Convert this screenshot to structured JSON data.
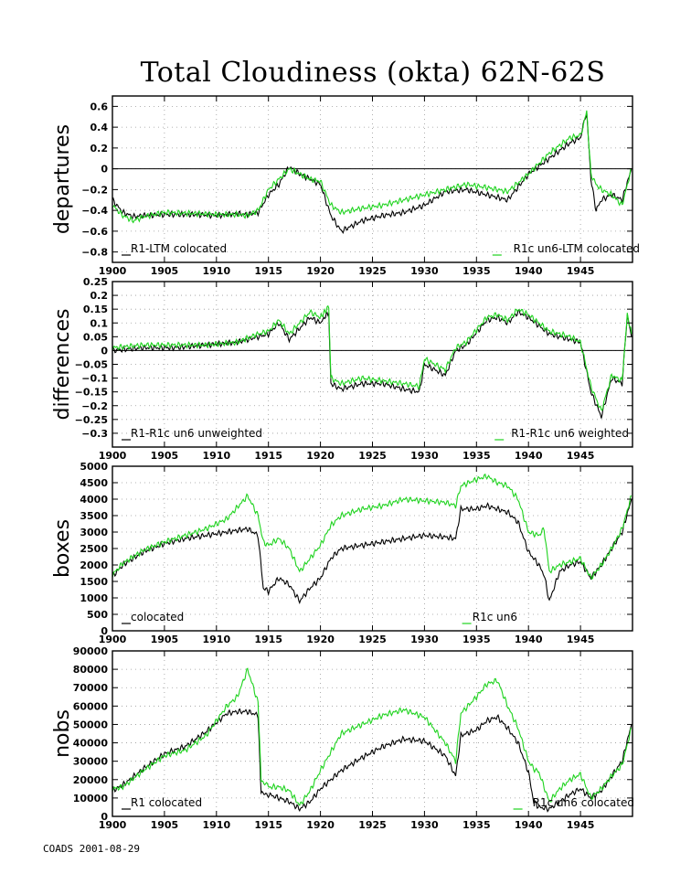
{
  "title": "Total Cloudiness (okta) 62N-62S",
  "footer": "COADS 2001-08-29",
  "colors": {
    "series_black": "#000000",
    "series_green": "#1ed31e",
    "zero_line": "#000000"
  },
  "x_axis": {
    "range": [
      1900,
      1950
    ],
    "ticks": [
      1900,
      1905,
      1910,
      1915,
      1920,
      1925,
      1930,
      1935,
      1940,
      1945
    ],
    "tick_labels": [
      "1900",
      "1905",
      "1910",
      "1915",
      "1920",
      "1925",
      "1930",
      "1935",
      "1940",
      "1945"
    ]
  },
  "chart_data": [
    {
      "type": "line",
      "ylabel": "departures",
      "ylim": [
        -0.9,
        0.7
      ],
      "yticks": [
        -0.8,
        -0.6,
        -0.4,
        -0.2,
        0,
        0.2,
        0.4,
        0.6
      ],
      "ytick_labels": [
        "−0.8",
        "−0.6",
        "−0.4",
        "−0.2",
        "0",
        "0.2",
        "0.4",
        "0.6"
      ],
      "zero_line": true,
      "grid": "dotted",
      "legend": "bottom",
      "series": [
        {
          "name": "R1-LTM colocated",
          "color": "#000000",
          "x": [
            1900,
            1901,
            1902,
            1903,
            1905,
            1908,
            1910,
            1912,
            1913,
            1914,
            1915,
            1916,
            1917,
            1918,
            1919,
            1920,
            1921,
            1922,
            1924,
            1926,
            1928,
            1930,
            1932,
            1934,
            1936,
            1938,
            1940,
            1942,
            1944,
            1945,
            1945.6,
            1946,
            1946.5,
            1947,
            1948,
            1949,
            1949.9
          ],
          "y": [
            -0.3,
            -0.42,
            -0.46,
            -0.45,
            -0.44,
            -0.44,
            -0.45,
            -0.43,
            -0.44,
            -0.42,
            -0.25,
            -0.15,
            0.02,
            -0.05,
            -0.1,
            -0.15,
            -0.45,
            -0.6,
            -0.5,
            -0.45,
            -0.42,
            -0.35,
            -0.22,
            -0.2,
            -0.25,
            -0.3,
            -0.05,
            0.1,
            0.25,
            0.3,
            0.55,
            -0.1,
            -0.4,
            -0.3,
            -0.25,
            -0.3,
            0.0
          ]
        },
        {
          "name": "R1c un6-LTM colocated",
          "color": "#1ed31e",
          "x": [
            1900,
            1901,
            1902,
            1903,
            1905,
            1908,
            1910,
            1912,
            1913,
            1914,
            1915,
            1916,
            1917,
            1918,
            1919,
            1920,
            1921,
            1922,
            1924,
            1926,
            1928,
            1930,
            1932,
            1934,
            1936,
            1938,
            1940,
            1942,
            1944,
            1945,
            1945.6,
            1946,
            1946.5,
            1947,
            1948,
            1949,
            1949.9
          ],
          "y": [
            -0.35,
            -0.45,
            -0.5,
            -0.46,
            -0.42,
            -0.43,
            -0.44,
            -0.44,
            -0.45,
            -0.4,
            -0.2,
            -0.1,
            0.0,
            -0.05,
            -0.1,
            -0.12,
            -0.35,
            -0.42,
            -0.38,
            -0.35,
            -0.3,
            -0.25,
            -0.2,
            -0.15,
            -0.18,
            -0.22,
            -0.05,
            0.15,
            0.3,
            0.32,
            0.55,
            -0.05,
            -0.15,
            -0.2,
            -0.25,
            -0.35,
            0.0
          ]
        }
      ],
      "legend_entries": [
        "R1-LTM colocated",
        "R1c un6-LTM colocated"
      ]
    },
    {
      "type": "line",
      "ylabel": "differences",
      "ylim": [
        -0.35,
        0.25
      ],
      "yticks": [
        -0.3,
        -0.25,
        -0.2,
        -0.15,
        -0.1,
        -0.05,
        0,
        0.05,
        0.1,
        0.15,
        0.2,
        0.25
      ],
      "ytick_labels": [
        "−0.3",
        "−0.25",
        "−0.2",
        "−0.15",
        "−0.1",
        "−0.05",
        "0",
        "0.05",
        "0.1",
        "0.15",
        "0.2",
        "0.25"
      ],
      "zero_line": true,
      "grid": "dotted",
      "legend": "bottom",
      "series": [
        {
          "name": "R1-R1c un6 unweighted",
          "color": "#000000",
          "x": [
            1900,
            1903,
            1906,
            1909,
            1912,
            1914,
            1915,
            1916,
            1917,
            1918,
            1919,
            1920,
            1920.8,
            1921,
            1922,
            1924,
            1926,
            1928,
            1929.5,
            1930,
            1931,
            1932,
            1933,
            1934,
            1936,
            1937,
            1938,
            1939,
            1940,
            1942,
            1944,
            1945,
            1946,
            1947,
            1948,
            1949,
            1949.5,
            1949.9
          ],
          "y": [
            0.0,
            0.01,
            0.01,
            0.02,
            0.03,
            0.05,
            0.06,
            0.1,
            0.04,
            0.08,
            0.12,
            0.1,
            0.14,
            -0.12,
            -0.14,
            -0.12,
            -0.12,
            -0.14,
            -0.15,
            -0.05,
            -0.07,
            -0.09,
            0.0,
            0.02,
            0.11,
            0.12,
            0.1,
            0.14,
            0.12,
            0.06,
            0.04,
            0.03,
            -0.15,
            -0.24,
            -0.1,
            -0.12,
            0.13,
            0.05
          ]
        },
        {
          "name": "R1-R1c un6 weighted",
          "color": "#1ed31e",
          "x": [
            1900,
            1903,
            1906,
            1909,
            1912,
            1914,
            1915,
            1916,
            1917,
            1918,
            1919,
            1920,
            1920.8,
            1921,
            1922,
            1924,
            1926,
            1928,
            1929.5,
            1930,
            1931,
            1932,
            1933,
            1934,
            1936,
            1937,
            1938,
            1939,
            1940,
            1942,
            1944,
            1945,
            1946,
            1947,
            1948,
            1949,
            1949.5,
            1949.9
          ],
          "y": [
            0.01,
            0.02,
            0.02,
            0.02,
            0.03,
            0.06,
            0.07,
            0.11,
            0.06,
            0.1,
            0.14,
            0.12,
            0.16,
            -0.1,
            -0.12,
            -0.1,
            -0.11,
            -0.12,
            -0.13,
            -0.03,
            -0.05,
            -0.07,
            0.01,
            0.03,
            0.12,
            0.13,
            0.11,
            0.15,
            0.13,
            0.07,
            0.05,
            0.03,
            -0.13,
            -0.22,
            -0.09,
            -0.11,
            0.13,
            0.06
          ]
        }
      ],
      "legend_entries": [
        "R1-R1c un6 unweighted",
        "R1-R1c un6 weighted"
      ]
    },
    {
      "type": "line",
      "ylabel": "boxes",
      "ylim": [
        0,
        5000
      ],
      "yticks": [
        0,
        500,
        1000,
        1500,
        2000,
        2500,
        3000,
        3500,
        4000,
        4500,
        5000
      ],
      "ytick_labels": [
        "0",
        "500",
        "1000",
        "1500",
        "2000",
        "2500",
        "3000",
        "3500",
        "4000",
        "4500",
        "5000"
      ],
      "zero_line": false,
      "grid": "dotted",
      "legend": "bottom",
      "series": [
        {
          "name": "colocated",
          "color": "#000000",
          "x": [
            1900,
            1901,
            1903,
            1905,
            1907,
            1909,
            1911,
            1913,
            1914,
            1914.5,
            1915,
            1916,
            1917,
            1918,
            1919,
            1920,
            1921,
            1922,
            1924,
            1926,
            1928,
            1930,
            1932,
            1933,
            1933.5,
            1935,
            1936,
            1937,
            1938,
            1939,
            1940,
            1941,
            1941.5,
            1942,
            1943,
            1944,
            1945,
            1946,
            1947,
            1948,
            1949,
            1949.9
          ],
          "y": [
            1650,
            2000,
            2400,
            2650,
            2800,
            2900,
            3000,
            3100,
            2900,
            1300,
            1200,
            1600,
            1400,
            900,
            1300,
            1600,
            2200,
            2500,
            2600,
            2700,
            2800,
            2900,
            2850,
            2800,
            3700,
            3700,
            3800,
            3700,
            3600,
            3300,
            2400,
            2000,
            1700,
            900,
            1800,
            2000,
            2100,
            1600,
            2000,
            2500,
            3000,
            4000
          ]
        },
        {
          "name": "R1c un6",
          "color": "#1ed31e",
          "x": [
            1900,
            1901,
            1903,
            1905,
            1907,
            1909,
            1911,
            1913,
            1914,
            1914.5,
            1915,
            1916,
            1917,
            1918,
            1919,
            1920,
            1921,
            1922,
            1924,
            1926,
            1928,
            1930,
            1932,
            1933,
            1933.5,
            1935,
            1936,
            1937,
            1938,
            1939,
            1940,
            1941,
            1941.5,
            1942,
            1943,
            1944,
            1945,
            1946,
            1947,
            1948,
            1949,
            1949.9
          ],
          "y": [
            1700,
            2050,
            2450,
            2700,
            2900,
            3100,
            3400,
            4100,
            3500,
            2700,
            2600,
            2800,
            2500,
            1800,
            2200,
            2600,
            3200,
            3500,
            3700,
            3800,
            4000,
            3950,
            3900,
            3800,
            4400,
            4600,
            4700,
            4500,
            4400,
            4000,
            3000,
            2900,
            3100,
            1800,
            2000,
            2100,
            2200,
            1600,
            2000,
            2500,
            3100,
            4100
          ]
        }
      ],
      "legend_entries": [
        "colocated",
        "R1c un6"
      ]
    },
    {
      "type": "line",
      "ylabel": "nobs",
      "ylim": [
        0,
        90000
      ],
      "yticks": [
        0,
        10000,
        20000,
        30000,
        40000,
        50000,
        60000,
        70000,
        80000,
        90000
      ],
      "ytick_labels": [
        "0",
        "10000",
        "20000",
        "30000",
        "40000",
        "50000",
        "60000",
        "70000",
        "80000",
        "90000"
      ],
      "zero_line": false,
      "grid": "dotted",
      "legend": "bottom",
      "series": [
        {
          "name": "R1 colocated",
          "color": "#000000",
          "x": [
            1900,
            1901,
            1903,
            1905,
            1907,
            1909,
            1911,
            1912,
            1913,
            1914,
            1914.3,
            1915,
            1916,
            1917,
            1918,
            1919,
            1920,
            1921,
            1922,
            1924,
            1926,
            1928,
            1930,
            1932,
            1933,
            1933.5,
            1935,
            1936,
            1937,
            1938,
            1939,
            1940,
            1940.5,
            1941,
            1942,
            1943,
            1944,
            1945,
            1946,
            1947,
            1948,
            1949,
            1949.9
          ],
          "y": [
            14000,
            17000,
            26000,
            34000,
            38000,
            46000,
            56000,
            57000,
            57000,
            55000,
            12000,
            12000,
            10000,
            8000,
            4000,
            8000,
            15000,
            20000,
            25000,
            32000,
            38000,
            42000,
            41000,
            33000,
            22000,
            44000,
            47000,
            52000,
            54000,
            48000,
            40000,
            24000,
            8000,
            5000,
            4000,
            8000,
            12000,
            15000,
            10000,
            14000,
            22000,
            30000,
            50000
          ]
        },
        {
          "name": "R1c un6 colocated",
          "color": "#1ed31e",
          "x": [
            1900,
            1901,
            1903,
            1905,
            1907,
            1909,
            1911,
            1912,
            1913,
            1914,
            1914.3,
            1915,
            1916,
            1917,
            1918,
            1919,
            1920,
            1921,
            1922,
            1924,
            1926,
            1928,
            1930,
            1932,
            1933,
            1933.5,
            1935,
            1936,
            1937,
            1938,
            1939,
            1940,
            1940.5,
            1941,
            1942,
            1943,
            1944,
            1945,
            1946,
            1947,
            1948,
            1949,
            1949.9
          ],
          "y": [
            15000,
            16000,
            25000,
            33000,
            36000,
            44000,
            60000,
            65000,
            80000,
            62000,
            20000,
            16000,
            16000,
            14000,
            6000,
            14000,
            25000,
            35000,
            45000,
            50000,
            55000,
            58000,
            54000,
            40000,
            30000,
            56000,
            65000,
            72000,
            74000,
            60000,
            48000,
            30000,
            26000,
            24000,
            8000,
            15000,
            20000,
            23000,
            10000,
            15000,
            22000,
            28000,
            48000
          ]
        }
      ],
      "legend_entries": [
        "R1 colocated",
        "R1c un6 colocated"
      ]
    }
  ]
}
